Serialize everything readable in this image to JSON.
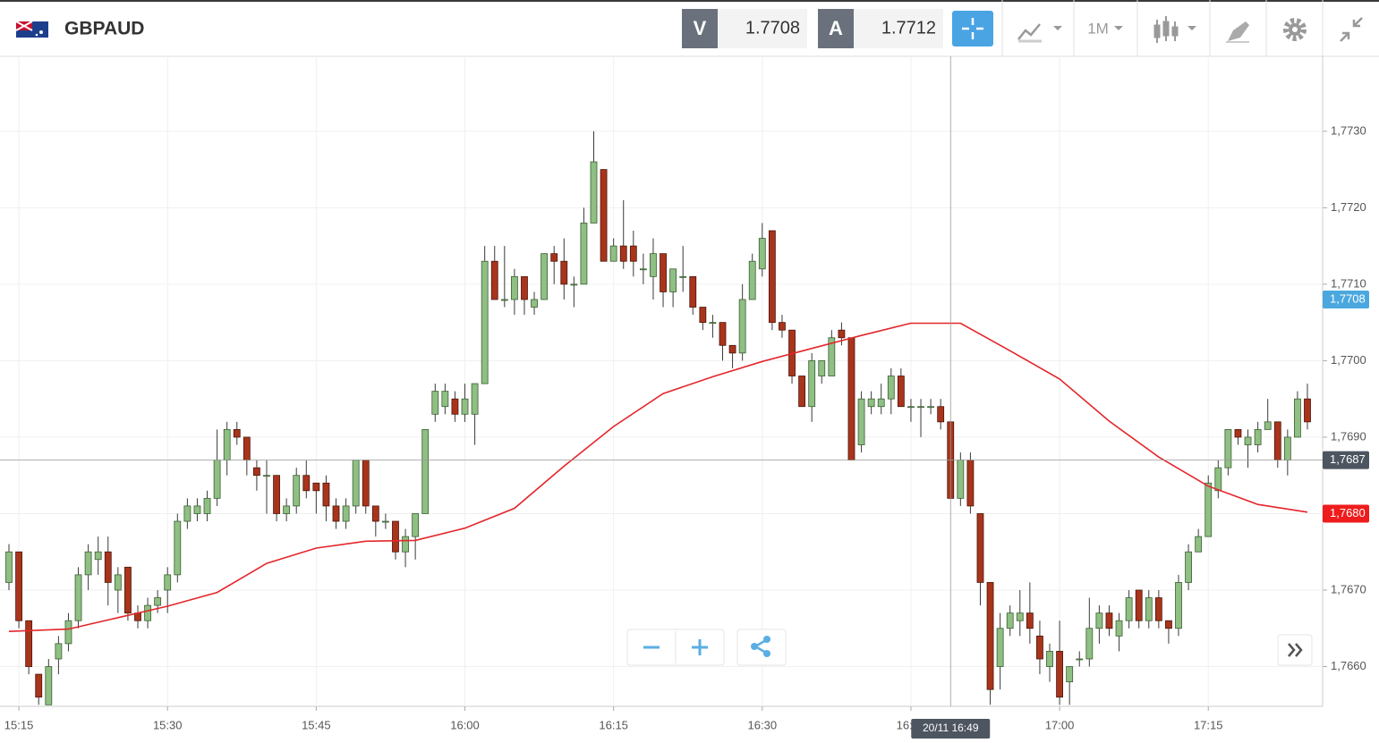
{
  "header": {
    "symbol": "GBPAUD",
    "bid_label": "V",
    "bid": "1.7708",
    "ask_label": "A",
    "ask": "1.7712",
    "timeframe": "1M"
  },
  "chart_data": {
    "type": "candlestick",
    "up_color": "#8fbf83",
    "down_color": "#a9341c",
    "x": [
      "15:14",
      "15:15",
      "15:16",
      "15:17",
      "15:18",
      "15:19",
      "15:20",
      "15:21",
      "15:22",
      "15:23",
      "15:24",
      "15:25",
      "15:26",
      "15:27",
      "15:28",
      "15:29",
      "15:30",
      "15:31",
      "15:32",
      "15:33",
      "15:34",
      "15:35",
      "15:36",
      "15:37",
      "15:38",
      "15:39",
      "15:40",
      "15:41",
      "15:42",
      "15:43",
      "15:44",
      "15:45",
      "15:46",
      "15:47",
      "15:48",
      "15:49",
      "15:50",
      "15:51",
      "15:52",
      "15:53",
      "15:54",
      "15:55",
      "15:56",
      "15:57",
      "15:58",
      "15:59",
      "16:00",
      "16:01",
      "16:02",
      "16:03",
      "16:04",
      "16:05",
      "16:06",
      "16:07",
      "16:08",
      "16:09",
      "16:10",
      "16:11",
      "16:12",
      "16:13",
      "16:14",
      "16:15",
      "16:16",
      "16:17",
      "16:18",
      "16:19",
      "16:20",
      "16:21",
      "16:22",
      "16:23",
      "16:24",
      "16:25",
      "16:26",
      "16:27",
      "16:28",
      "16:29",
      "16:30",
      "16:31",
      "16:32",
      "16:33",
      "16:34",
      "16:35",
      "16:36",
      "16:37",
      "16:38",
      "16:39",
      "16:40",
      "16:41",
      "16:42",
      "16:43",
      "16:44",
      "16:45",
      "16:46",
      "16:47",
      "16:48",
      "16:49",
      "16:50",
      "16:51",
      "16:52",
      "16:53",
      "16:54",
      "16:55",
      "16:56",
      "16:57",
      "16:58",
      "16:59",
      "17:00",
      "17:01",
      "17:02",
      "17:03",
      "17:04",
      "17:05",
      "17:06",
      "17:07",
      "17:08",
      "17:09",
      "17:10",
      "17:11",
      "17:12",
      "17:13",
      "17:14",
      "17:15",
      "17:16",
      "17:17",
      "17:18",
      "17:19",
      "17:20",
      "17:21",
      "17:22",
      "17:23",
      "17:24",
      "17:25"
    ],
    "open": [
      1.7671,
      1.7675,
      1.7666,
      1.7659,
      1.7655,
      1.7661,
      1.7663,
      1.7666,
      1.7672,
      1.7674,
      1.7675,
      1.767,
      1.7673,
      1.7667,
      1.7666,
      1.7668,
      1.767,
      1.7672,
      1.7679,
      1.768,
      1.768,
      1.7682,
      1.7687,
      1.7691,
      1.769,
      1.7686,
      1.7685,
      1.7685,
      1.768,
      1.7681,
      1.7685,
      1.7684,
      1.7684,
      1.7681,
      1.7679,
      1.7681,
      1.7687,
      1.7681,
      1.7679,
      1.7679,
      1.7675,
      1.7677,
      1.768,
      1.7693,
      1.7694,
      1.7695,
      1.7693,
      1.7693,
      1.7697,
      1.7713,
      1.7708,
      1.7708,
      1.7711,
      1.7707,
      1.7708,
      1.7714,
      1.7713,
      1.771,
      1.771,
      1.7718,
      1.7725,
      1.7713,
      1.7715,
      1.7715,
      1.7712,
      1.7711,
      1.7714,
      1.7709,
      1.7711,
      1.7711,
      1.7707,
      1.7705,
      1.7705,
      1.7702,
      1.7701,
      1.7708,
      1.7712,
      1.7717,
      1.7705,
      1.7704,
      1.7698,
      1.7694,
      1.7698,
      1.7698,
      1.7704,
      1.7703,
      1.7689,
      1.7694,
      1.7694,
      1.7695,
      1.7698,
      1.7694,
      1.7694,
      1.7694,
      1.7694,
      1.7692,
      1.7682,
      1.7687,
      1.768,
      1.7671,
      1.766,
      1.7665,
      1.7666,
      1.7667,
      1.7664,
      1.766,
      1.7662,
      1.7658,
      1.7661,
      1.7661,
      1.7665,
      1.7667,
      1.7664,
      1.7666,
      1.767,
      1.7666,
      1.7669,
      1.7666,
      1.7665,
      1.7671,
      1.7675,
      1.7677,
      1.7683,
      1.7686,
      1.7691,
      1.7689,
      1.7689,
      1.7691,
      1.7692,
      1.7687,
      1.769,
      1.7695
    ],
    "high": [
      1.7676,
      1.7675,
      1.7666,
      1.7659,
      1.7661,
      1.7664,
      1.7667,
      1.7673,
      1.7676,
      1.7677,
      1.7677,
      1.7673,
      1.7673,
      1.7668,
      1.7669,
      1.767,
      1.7673,
      1.768,
      1.7682,
      1.7682,
      1.7683,
      1.7691,
      1.7692,
      1.7692,
      1.769,
      1.7687,
      1.7687,
      1.7685,
      1.7682,
      1.7686,
      1.7687,
      1.7684,
      1.7685,
      1.7682,
      1.7682,
      1.7687,
      1.7687,
      1.7681,
      1.768,
      1.7679,
      1.7678,
      1.768,
      1.7691,
      1.7697,
      1.7697,
      1.7696,
      1.7697,
      1.7697,
      1.7715,
      1.7715,
      1.7715,
      1.7712,
      1.7711,
      1.7709,
      1.7714,
      1.7715,
      1.7716,
      1.7711,
      1.772,
      1.773,
      1.7725,
      1.7716,
      1.7721,
      1.7717,
      1.7714,
      1.7716,
      1.7714,
      1.7712,
      1.7715,
      1.7711,
      1.7707,
      1.7706,
      1.7705,
      1.7702,
      1.771,
      1.7714,
      1.7718,
      1.7717,
      1.7706,
      1.7704,
      1.7698,
      1.7701,
      1.77,
      1.7704,
      1.7705,
      1.7703,
      1.7696,
      1.7696,
      1.7697,
      1.7699,
      1.7699,
      1.7695,
      1.7695,
      1.7695,
      1.7695,
      1.7692,
      1.7688,
      1.7688,
      1.768,
      1.7671,
      1.7667,
      1.7668,
      1.767,
      1.7671,
      1.7666,
      1.7663,
      1.7666,
      1.766,
      1.7662,
      1.7669,
      1.7668,
      1.7668,
      1.7667,
      1.767,
      1.767,
      1.767,
      1.767,
      1.7666,
      1.7672,
      1.7676,
      1.7678,
      1.7685,
      1.7687,
      1.7691,
      1.7691,
      1.7691,
      1.7692,
      1.7695,
      1.7692,
      1.7691,
      1.7696,
      1.7697
    ],
    "low": [
      1.767,
      1.7665,
      1.7659,
      1.7655,
      1.7655,
      1.7659,
      1.7662,
      1.7665,
      1.767,
      1.7672,
      1.7668,
      1.7667,
      1.7666,
      1.7665,
      1.7665,
      1.7667,
      1.7667,
      1.7671,
      1.7678,
      1.7679,
      1.7679,
      1.7681,
      1.7685,
      1.7689,
      1.7685,
      1.7683,
      1.768,
      1.7679,
      1.7679,
      1.768,
      1.7682,
      1.768,
      1.7679,
      1.7678,
      1.7678,
      1.768,
      1.768,
      1.7677,
      1.7678,
      1.7674,
      1.7673,
      1.7674,
      1.768,
      1.7692,
      1.7693,
      1.7692,
      1.7692,
      1.7689,
      1.7697,
      1.7708,
      1.7707,
      1.7706,
      1.7706,
      1.7706,
      1.7708,
      1.771,
      1.7708,
      1.7707,
      1.771,
      1.7718,
      1.7713,
      1.7713,
      1.7712,
      1.7711,
      1.771,
      1.7708,
      1.7707,
      1.7707,
      1.7709,
      1.7706,
      1.7704,
      1.7703,
      1.77,
      1.7699,
      1.77,
      1.7708,
      1.7711,
      1.7704,
      1.7703,
      1.7697,
      1.7694,
      1.7692,
      1.7697,
      1.7698,
      1.7702,
      1.7687,
      1.7688,
      1.7693,
      1.7693,
      1.7693,
      1.7694,
      1.7692,
      1.769,
      1.7693,
      1.7691,
      1.7682,
      1.7681,
      1.768,
      1.7668,
      1.7655,
      1.7657,
      1.7664,
      1.7664,
      1.7663,
      1.7659,
      1.7658,
      1.7655,
      1.7655,
      1.766,
      1.766,
      1.7663,
      1.7664,
      1.7662,
      1.7665,
      1.7665,
      1.7665,
      1.7665,
      1.7663,
      1.7664,
      1.767,
      1.7675,
      1.7677,
      1.7682,
      1.7685,
      1.7689,
      1.7686,
      1.7688,
      1.7691,
      1.7686,
      1.7685,
      1.769,
      1.7691
    ],
    "close": [
      1.7675,
      1.7666,
      1.766,
      1.7656,
      1.766,
      1.7663,
      1.7666,
      1.7672,
      1.7675,
      1.7675,
      1.7671,
      1.7672,
      1.7667,
      1.7666,
      1.7668,
      1.7669,
      1.7672,
      1.7679,
      1.7681,
      1.7681,
      1.7682,
      1.7687,
      1.7691,
      1.769,
      1.7687,
      1.7685,
      1.7685,
      1.768,
      1.7681,
      1.7685,
      1.7683,
      1.7683,
      1.7681,
      1.7679,
      1.7681,
      1.7687,
      1.7681,
      1.7679,
      1.7679,
      1.7675,
      1.7677,
      1.768,
      1.7691,
      1.7696,
      1.7696,
      1.7693,
      1.7695,
      1.7697,
      1.7713,
      1.7708,
      1.7708,
      1.7711,
      1.7708,
      1.7708,
      1.7714,
      1.7713,
      1.771,
      1.771,
      1.7718,
      1.7726,
      1.7713,
      1.7715,
      1.7713,
      1.7713,
      1.7712,
      1.7714,
      1.7709,
      1.7712,
      1.7711,
      1.7707,
      1.7705,
      1.7705,
      1.7702,
      1.7701,
      1.7708,
      1.7713,
      1.7716,
      1.7705,
      1.7704,
      1.7698,
      1.7694,
      1.77,
      1.77,
      1.7703,
      1.7703,
      1.7687,
      1.7695,
      1.7695,
      1.7695,
      1.7698,
      1.7694,
      1.7694,
      1.7694,
      1.7694,
      1.7692,
      1.7682,
      1.7687,
      1.7681,
      1.7671,
      1.7657,
      1.7665,
      1.7667,
      1.7667,
      1.7665,
      1.7661,
      1.7662,
      1.7656,
      1.766,
      1.7661,
      1.7665,
      1.7667,
      1.7665,
      1.7666,
      1.7669,
      1.7666,
      1.7669,
      1.7666,
      1.7665,
      1.7671,
      1.7675,
      1.7677,
      1.7684,
      1.7686,
      1.7691,
      1.769,
      1.769,
      1.7691,
      1.7692,
      1.7687,
      1.769,
      1.7695,
      1.7692
    ],
    "ma": {
      "color": "#e3262b",
      "x": [
        "15:14",
        "15:20",
        "15:25",
        "15:30",
        "15:35",
        "15:40",
        "15:45",
        "15:50",
        "15:55",
        "16:00",
        "16:05",
        "16:10",
        "16:15",
        "16:20",
        "16:25",
        "16:30",
        "16:35",
        "16:40",
        "16:45",
        "16:50",
        "16:55",
        "17:00",
        "17:05",
        "17:10",
        "17:15",
        "17:20",
        "17:25"
      ],
      "values": [
        1.76646,
        1.76649,
        1.76664,
        1.76679,
        1.76697,
        1.76735,
        1.76755,
        1.76764,
        1.76765,
        1.76781,
        1.76807,
        1.76862,
        1.76914,
        1.76957,
        1.76979,
        1.76999,
        1.77016,
        1.77033,
        1.77049,
        1.77049,
        1.77013,
        1.76976,
        1.76921,
        1.76874,
        1.76836,
        1.76812,
        1.76802
      ]
    },
    "ylim": [
      1.76548,
      1.77398
    ],
    "yticks": [
      {
        "value": 1.766,
        "label": "1,7660"
      },
      {
        "value": 1.767,
        "label": "1,7670"
      },
      {
        "value": 1.768,
        "label": "1,7680"
      },
      {
        "value": 1.769,
        "label": "1,7690"
      },
      {
        "value": 1.77,
        "label": "1,7700"
      },
      {
        "value": 1.771,
        "label": "1,7710"
      },
      {
        "value": 1.772,
        "label": "1,7720"
      },
      {
        "value": 1.773,
        "label": "1,7730"
      }
    ],
    "xticks": [
      "15:15",
      "15:30",
      "15:45",
      "16:00",
      "16:15",
      "16:30",
      "16:45",
      "17:00",
      "17:15"
    ],
    "grid": true,
    "price_tags": [
      {
        "value": 1.7708,
        "label": "1,7708",
        "color": "#4aa8de"
      },
      {
        "value": 1.768,
        "label": "1,7680",
        "color": "#ee1c1c"
      }
    ],
    "crosshair": {
      "time_label": "20/11 16:49",
      "value": 1.7687,
      "value_label": "1,7687",
      "color": "#4d5560"
    }
  }
}
